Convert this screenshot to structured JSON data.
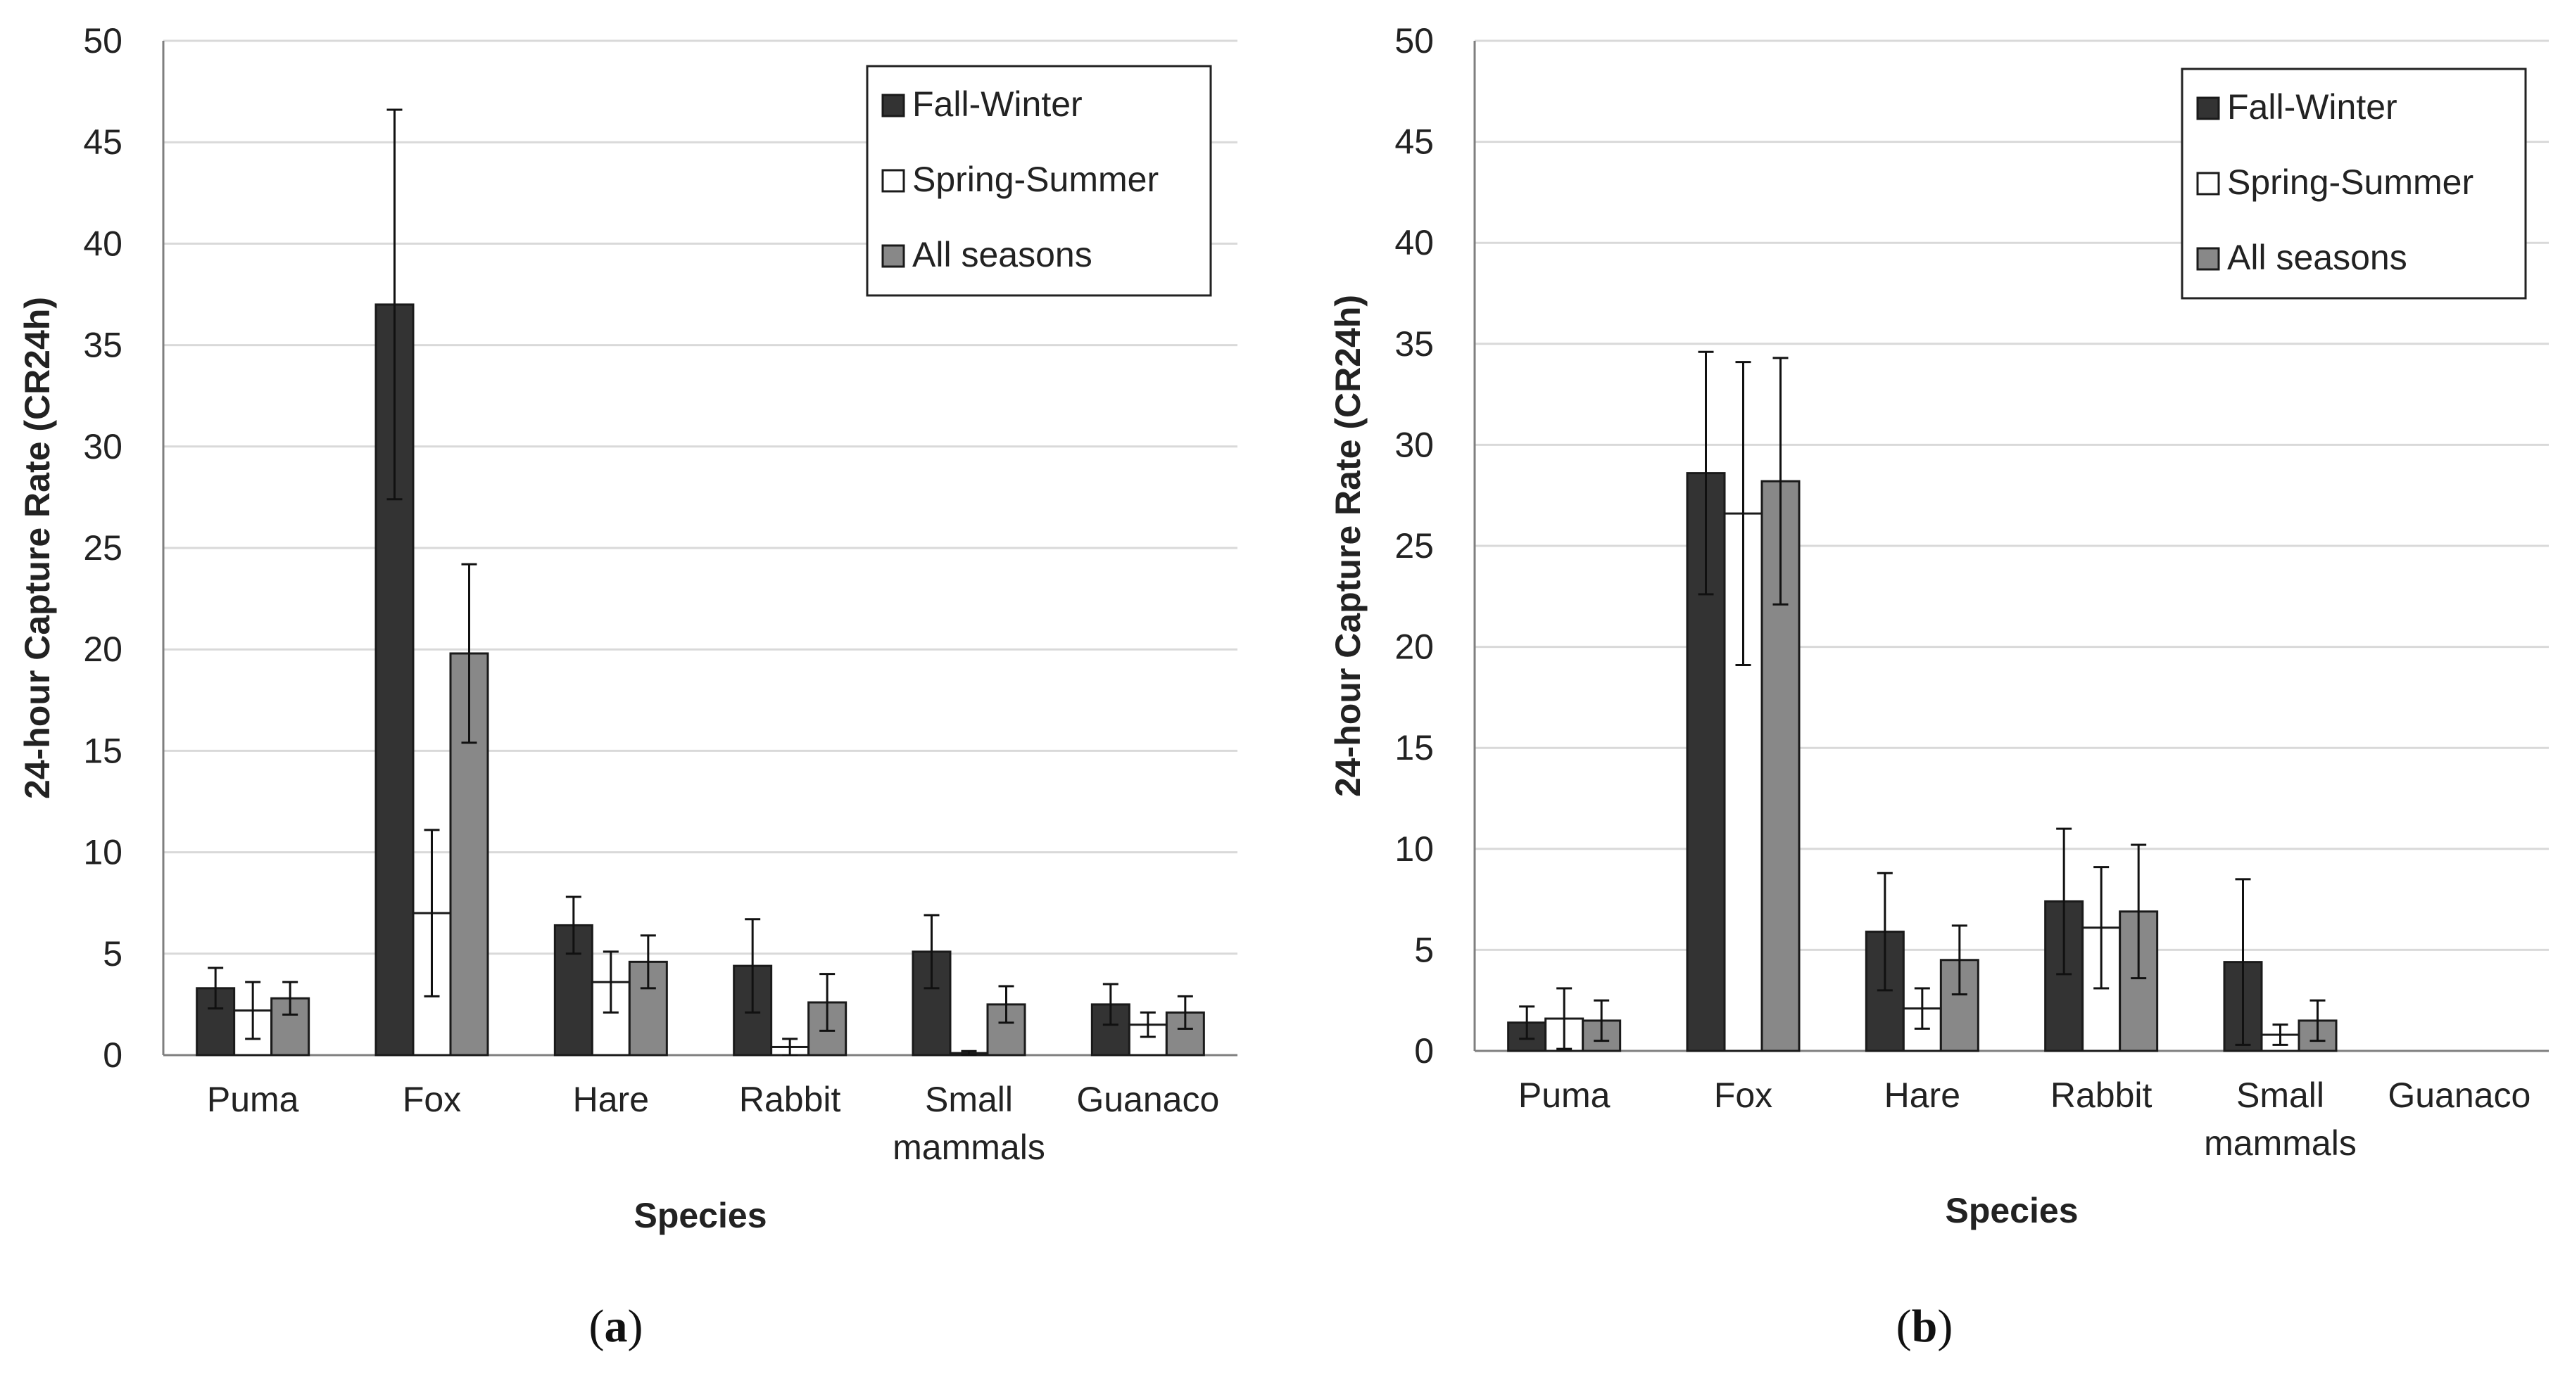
{
  "chart_data": [
    {
      "panel": "a",
      "type": "bar",
      "title": "",
      "xlabel": "Species",
      "ylabel": "24-hour Capture Rate (CR24h)",
      "ylim": [
        0,
        50
      ],
      "yticks": [
        0,
        5,
        10,
        15,
        20,
        25,
        30,
        35,
        40,
        45,
        50
      ],
      "categories": [
        [
          "Puma"
        ],
        [
          "Fox"
        ],
        [
          "Hare"
        ],
        [
          "Rabbit"
        ],
        [
          "Small",
          "mammals"
        ],
        [
          "Guanaco"
        ]
      ],
      "legend_position": "top-right",
      "series": [
        {
          "name": "Fall-Winter",
          "color": "#333333",
          "values": [
            3.3,
            37.0,
            6.4,
            4.4,
            5.1,
            2.5
          ],
          "errors": [
            1.0,
            9.6,
            1.4,
            2.3,
            1.8,
            1.0
          ]
        },
        {
          "name": "Spring-Summer",
          "color": "#ffffff",
          "values": [
            2.2,
            7.0,
            3.6,
            0.4,
            0.1,
            1.5
          ],
          "errors": [
            1.4,
            4.1,
            1.5,
            0.4,
            0.1,
            0.6
          ]
        },
        {
          "name": "All seasons",
          "color": "#888888",
          "values": [
            2.8,
            19.8,
            4.6,
            2.6,
            2.5,
            2.1
          ],
          "errors": [
            0.8,
            4.4,
            1.3,
            1.4,
            0.9,
            0.8
          ]
        }
      ]
    },
    {
      "panel": "b",
      "type": "bar",
      "title": "",
      "xlabel": "Species",
      "ylabel": "24-hour Capture Rate (CR24h)",
      "ylim": [
        0,
        50
      ],
      "yticks": [
        0,
        5,
        10,
        15,
        20,
        25,
        30,
        35,
        40,
        45,
        50
      ],
      "categories": [
        [
          "Puma"
        ],
        [
          "Fox"
        ],
        [
          "Hare"
        ],
        [
          "Rabbit"
        ],
        [
          "Small",
          "mammals"
        ],
        [
          "Guanaco"
        ]
      ],
      "legend_position": "top-right",
      "series": [
        {
          "name": "Fall-Winter",
          "color": "#333333",
          "values": [
            1.4,
            28.6,
            5.9,
            7.4,
            4.4,
            0
          ],
          "errors": [
            0.8,
            6.0,
            2.9,
            3.6,
            4.1,
            0
          ]
        },
        {
          "name": "Spring-Summer",
          "color": "#ffffff",
          "values": [
            1.6,
            26.6,
            2.1,
            6.1,
            0.8,
            0
          ],
          "errors": [
            1.5,
            7.5,
            1.0,
            3.0,
            0.5,
            0
          ]
        },
        {
          "name": "All seasons",
          "color": "#888888",
          "values": [
            1.5,
            28.2,
            4.5,
            6.9,
            1.5,
            0
          ],
          "errors": [
            1.0,
            6.1,
            1.7,
            3.3,
            1.0,
            0
          ]
        }
      ]
    }
  ],
  "panel_labels": [
    {
      "open": "(",
      "letter": "a",
      "close": ")"
    },
    {
      "open": "(",
      "letter": "b",
      "close": ")"
    }
  ]
}
